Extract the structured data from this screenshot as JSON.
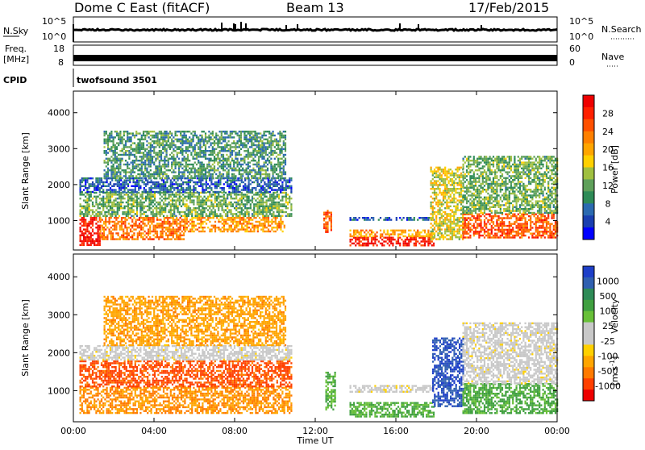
{
  "header": {
    "station": "Dome C East (fitACF)",
    "beam": "Beam 13",
    "date": "17/Feb/2015"
  },
  "panels": {
    "nsky": {
      "left_label": "N.Sky",
      "right_label": "N.Search",
      "left_ticks": [
        "10^5",
        "10^0"
      ],
      "right_ticks": [
        "10^5",
        "10^0"
      ]
    },
    "freq": {
      "left_label_1": "Freq.",
      "left_label_2": "[MHz]",
      "right_label": "Nave",
      "left_ticks": [
        "18",
        "8"
      ],
      "right_ticks": [
        "60",
        "0"
      ]
    },
    "cpid": {
      "label": "CPID",
      "text": "twofsound 3501"
    }
  },
  "axes": {
    "ylabel": "Slant Range [km]",
    "xlabel": "Time UT",
    "yticks": [
      "1000",
      "2000",
      "3000",
      "4000"
    ],
    "xticks": [
      "00:00",
      "04:00",
      "08:00",
      "12:00",
      "16:00",
      "20:00",
      "00:00"
    ]
  },
  "colorbars": {
    "power": {
      "label": "Power [dB]",
      "ticks": [
        "4",
        "8",
        "12",
        "16",
        "20",
        "24",
        "28"
      ],
      "colors": [
        "#0000ff",
        "#1a3fb0",
        "#2b6ab0",
        "#2e8b57",
        "#5fa05a",
        "#a0c040",
        "#ffd000",
        "#ffa500",
        "#ff8000",
        "#ff5000",
        "#ff2000",
        "#ee0000"
      ]
    },
    "velocity": {
      "label": "Velocity",
      "unit": "[m s",
      "unit_sup": "-1",
      "unit_close": "]",
      "ticks": [
        "1000",
        "500",
        "100",
        "25",
        "-25",
        "-100",
        "-500",
        "-1000"
      ],
      "colors": [
        "#1e3fc8",
        "#3060b0",
        "#2e8b57",
        "#40a040",
        "#68c038",
        "#c8c8c8",
        "#c8c8c8",
        "#ffd000",
        "#ffa500",
        "#ff7a00",
        "#ff4000",
        "#ee0000"
      ]
    }
  },
  "chart_data": {
    "type": "heatmap",
    "x_label": "Time UT",
    "y_label": "Slant Range [km]",
    "xlim_hours": [
      0,
      24
    ],
    "ylim_km": [
      180,
      4600
    ],
    "power_regions": [
      {
        "t0": 0.3,
        "t1": 1.3,
        "r0": 300,
        "r1": 1100,
        "v": 28
      },
      {
        "t0": 1.3,
        "t1": 5.5,
        "r0": 500,
        "r1": 1100,
        "v": 22
      },
      {
        "t0": 5.5,
        "t1": 10.5,
        "r0": 700,
        "r1": 1100,
        "v": 20
      },
      {
        "t0": 0.3,
        "t1": 10.8,
        "r0": 1100,
        "r1": 1800,
        "v": 12
      },
      {
        "t0": 0.3,
        "t1": 10.8,
        "r0": 1800,
        "r1": 2200,
        "v": 6
      },
      {
        "t0": 1.5,
        "t1": 10.5,
        "r0": 2200,
        "r1": 3500,
        "v": 10
      },
      {
        "t0": 12.4,
        "t1": 12.8,
        "r0": 700,
        "r1": 1300,
        "v": 24
      },
      {
        "t0": 13.7,
        "t1": 17.9,
        "r0": 1000,
        "r1": 1100,
        "v": 6
      },
      {
        "t0": 13.7,
        "t1": 17.9,
        "r0": 300,
        "r1": 550,
        "v": 28
      },
      {
        "t0": 13.7,
        "t1": 17.9,
        "r0": 550,
        "r1": 750,
        "v": 20
      },
      {
        "t0": 17.7,
        "t1": 19.3,
        "r0": 500,
        "r1": 2500,
        "v": 16
      },
      {
        "t0": 19.3,
        "t1": 24,
        "r0": 500,
        "r1": 1200,
        "v": 24
      },
      {
        "t0": 19.3,
        "t1": 24,
        "r0": 1200,
        "r1": 2800,
        "v": 12
      }
    ],
    "velocity_regions": [
      {
        "t0": 0.3,
        "t1": 10.8,
        "r0": 400,
        "r1": 1100,
        "v": -100
      },
      {
        "t0": 0.3,
        "t1": 10.8,
        "r0": 1100,
        "r1": 1800,
        "v": -300
      },
      {
        "t0": 0.3,
        "t1": 10.8,
        "r0": 1800,
        "r1": 2200,
        "v": 0
      },
      {
        "t0": 1.5,
        "t1": 10.5,
        "r0": 2200,
        "r1": 3500,
        "v": -80
      },
      {
        "t0": 12.5,
        "t1": 13.0,
        "r0": 500,
        "r1": 1500,
        "v": 100
      },
      {
        "t0": 13.7,
        "t1": 17.9,
        "r0": 950,
        "r1": 1150,
        "v": 0
      },
      {
        "t0": 13.7,
        "t1": 17.9,
        "r0": 300,
        "r1": 700,
        "v": 100
      },
      {
        "t0": 17.8,
        "t1": 19.3,
        "r0": 600,
        "r1": 2400,
        "v": 1000
      },
      {
        "t0": 19.3,
        "t1": 24,
        "r0": 400,
        "r1": 1200,
        "v": 120
      },
      {
        "t0": 19.3,
        "t1": 24,
        "r0": 1200,
        "r1": 2800,
        "v": 0
      }
    ]
  }
}
